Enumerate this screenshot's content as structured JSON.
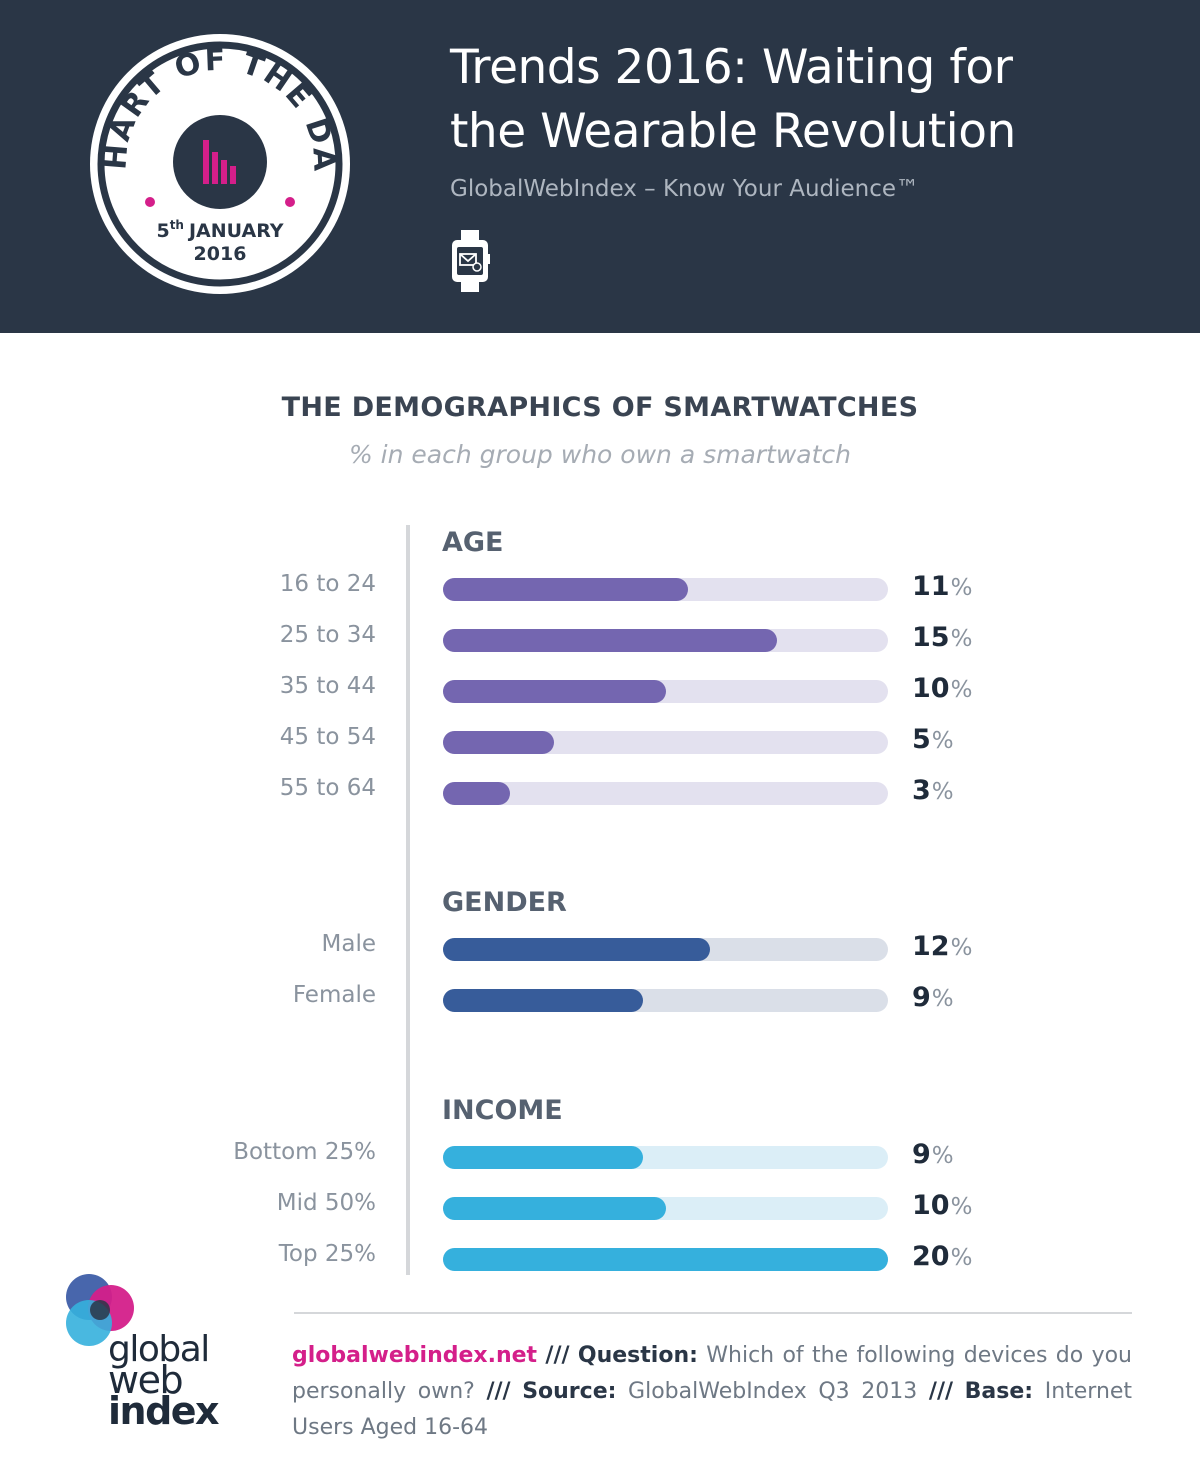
{
  "header": {
    "title_line1": "Trends 2016: Waiting for",
    "title_line2": "the Wearable Revolution",
    "tagline": "GlobalWebIndex – Know Your Audience™",
    "watch_icon": "smartwatch-icon",
    "badge": {
      "arc_text": "CHART OF THE DAY",
      "day": "5",
      "day_suffix": "th",
      "month": "JANUARY",
      "year": "2016",
      "icon": "bar-chart-icon"
    }
  },
  "chart_data": {
    "type": "bar",
    "orientation": "horizontal",
    "title": "THE DEMOGRAPHICS OF SMARTWATCHES",
    "subtitle": "% in each group who own a smartwatch",
    "xlim": [
      0,
      20
    ],
    "unit": "%",
    "groups": [
      {
        "name": "AGE",
        "color": "#7466b0",
        "track_color": "#e3e1ef",
        "categories": [
          "16 to 24",
          "25 to 34",
          "35 to 44",
          "45 to 54",
          "55 to 64"
        ],
        "values": [
          11,
          15,
          10,
          5,
          3
        ]
      },
      {
        "name": "GENDER",
        "color": "#375c9a",
        "track_color": "#dadfe8",
        "categories": [
          "Male",
          "Female"
        ],
        "values": [
          12,
          9
        ]
      },
      {
        "name": "INCOME",
        "color": "#35b0dd",
        "track_color": "#dbeef7",
        "categories": [
          "Bottom 25%",
          "Mid 50%",
          "Top 25%"
        ],
        "values": [
          9,
          10,
          20
        ]
      }
    ]
  },
  "footer": {
    "site": "globalwebindex.net",
    "sep": "///",
    "question_label": "Question:",
    "question": "Which of the following devices do you personally own?",
    "source_label": "Source:",
    "source": "GlobalWebIndex Q3 2013",
    "base_label": "Base:",
    "base": "Internet Users Aged 16-64",
    "logo_line1": "global",
    "logo_line2": "web",
    "logo_line3": "index"
  },
  "colors": {
    "header_bg": "#2a3646",
    "accent_magenta": "#d41f8a"
  }
}
